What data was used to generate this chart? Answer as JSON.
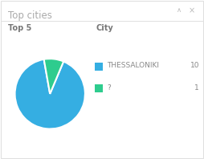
{
  "title": "Top cities",
  "subtitle": "Top 5",
  "col_header": "City",
  "slices": [
    10,
    1
  ],
  "labels": [
    "THESSALONIKI",
    "?"
  ],
  "values": [
    10,
    1
  ],
  "colors": [
    "#35aee2",
    "#2ecc8e"
  ],
  "panel_color": "#ffffff",
  "border_color": "#e0e0e0",
  "title_color": "#aaaaaa",
  "header_color": "#777777",
  "legend_text_color": "#888888",
  "value_color": "#888888",
  "title_fontsize": 8.5,
  "subtitle_fontsize": 7,
  "legend_fontsize": 6.5,
  "startangle": 100
}
